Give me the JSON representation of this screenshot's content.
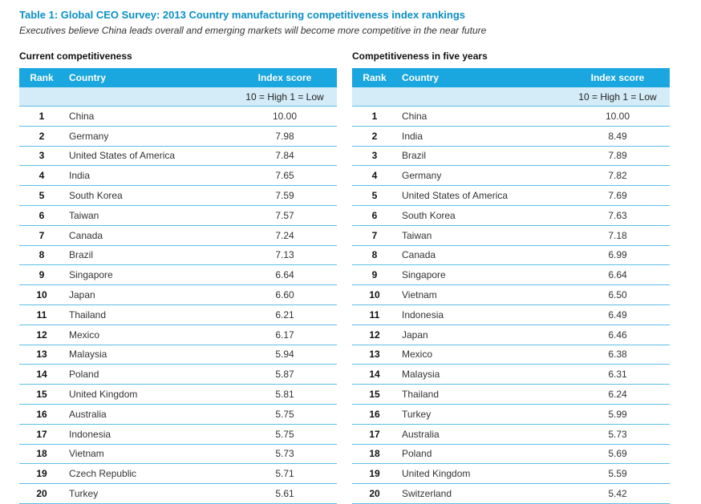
{
  "title": "Table 1: Global CEO Survey: 2013 Country manufacturing competitiveness index rankings",
  "subtitle": "Executives believe China leads overall and emerging markets will become more competitive in the near future",
  "header": {
    "rank": "Rank",
    "country": "Country",
    "score": "Index score",
    "scale": "10 = High 1 = Low"
  },
  "colors": {
    "title": "#0a8fc4",
    "header_bg": "#1aa6de",
    "subheader_bg": "#d4ecf8",
    "row_line": "#5bbfe6"
  },
  "tables": [
    {
      "heading": "Current competitiveness",
      "rows": [
        {
          "rank": "1",
          "country": "China",
          "score": "10.00"
        },
        {
          "rank": "2",
          "country": "Germany",
          "score": "7.98"
        },
        {
          "rank": "3",
          "country": "United States of America",
          "score": "7.84"
        },
        {
          "rank": "4",
          "country": "India",
          "score": "7.65"
        },
        {
          "rank": "5",
          "country": "South Korea",
          "score": "7.59"
        },
        {
          "rank": "6",
          "country": "Taiwan",
          "score": "7.57"
        },
        {
          "rank": "7",
          "country": "Canada",
          "score": "7.24"
        },
        {
          "rank": "8",
          "country": "Brazil",
          "score": "7.13"
        },
        {
          "rank": "9",
          "country": "Singapore",
          "score": "6.64"
        },
        {
          "rank": "10",
          "country": "Japan",
          "score": "6.60"
        },
        {
          "rank": "11",
          "country": "Thailand",
          "score": "6.21"
        },
        {
          "rank": "12",
          "country": "Mexico",
          "score": "6.17"
        },
        {
          "rank": "13",
          "country": "Malaysia",
          "score": "5.94"
        },
        {
          "rank": "14",
          "country": "Poland",
          "score": "5.87"
        },
        {
          "rank": "15",
          "country": "United Kingdom",
          "score": "5.81"
        },
        {
          "rank": "16",
          "country": "Australia",
          "score": "5.75"
        },
        {
          "rank": "17",
          "country": "Indonesia",
          "score": "5.75"
        },
        {
          "rank": "18",
          "country": "Vietnam",
          "score": "5.73"
        },
        {
          "rank": "19",
          "country": "Czech Republic",
          "score": "5.71"
        },
        {
          "rank": "20",
          "country": "Turkey",
          "score": "5.61"
        }
      ]
    },
    {
      "heading": "Competitiveness in five years",
      "rows": [
        {
          "rank": "1",
          "country": "China",
          "score": "10.00"
        },
        {
          "rank": "2",
          "country": "India",
          "score": "8.49"
        },
        {
          "rank": "3",
          "country": "Brazil",
          "score": "7.89"
        },
        {
          "rank": "4",
          "country": "Germany",
          "score": "7.82"
        },
        {
          "rank": "5",
          "country": "United States of America",
          "score": "7.69"
        },
        {
          "rank": "6",
          "country": "South Korea",
          "score": "7.63"
        },
        {
          "rank": "7",
          "country": "Taiwan",
          "score": "7.18"
        },
        {
          "rank": "8",
          "country": "Canada",
          "score": "6.99"
        },
        {
          "rank": "9",
          "country": "Singapore",
          "score": "6.64"
        },
        {
          "rank": "10",
          "country": "Vietnam",
          "score": "6.50"
        },
        {
          "rank": "11",
          "country": "Indonesia",
          "score": "6.49"
        },
        {
          "rank": "12",
          "country": "Japan",
          "score": "6.46"
        },
        {
          "rank": "13",
          "country": "Mexico",
          "score": "6.38"
        },
        {
          "rank": "14",
          "country": "Malaysia",
          "score": "6.31"
        },
        {
          "rank": "15",
          "country": "Thailand",
          "score": "6.24"
        },
        {
          "rank": "16",
          "country": "Turkey",
          "score": "5.99"
        },
        {
          "rank": "17",
          "country": "Australia",
          "score": "5.73"
        },
        {
          "rank": "18",
          "country": "Poland",
          "score": "5.69"
        },
        {
          "rank": "19",
          "country": "United Kingdom",
          "score": "5.59"
        },
        {
          "rank": "20",
          "country": "Switzerland",
          "score": "5.42"
        }
      ]
    }
  ]
}
